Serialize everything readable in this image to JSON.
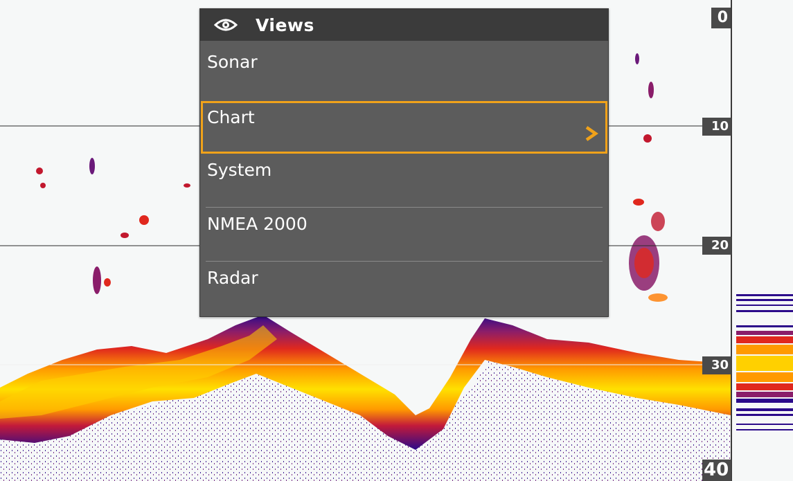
{
  "menu": {
    "title": "Views",
    "items": [
      {
        "label": "Sonar"
      },
      {
        "label": "Chart",
        "selected": true,
        "has_submenu": true
      },
      {
        "label": "System"
      },
      {
        "label": "NMEA 2000"
      },
      {
        "label": "Radar"
      }
    ]
  },
  "depth_scale": [
    "0",
    "10",
    "20",
    "30",
    "40"
  ],
  "colors": {
    "menu_bg": "#5c5c5c",
    "menu_header_bg": "#3b3b3b",
    "highlight": "#f0a21a",
    "sonar_strong": "#ffe000",
    "sonar_mid": "#ff7a00",
    "sonar_weak": "#8a1d6a",
    "sonar_faint": "#2b0a8a"
  },
  "icons": {
    "header": "eye-icon",
    "submenu": "chevron-right-icon"
  }
}
